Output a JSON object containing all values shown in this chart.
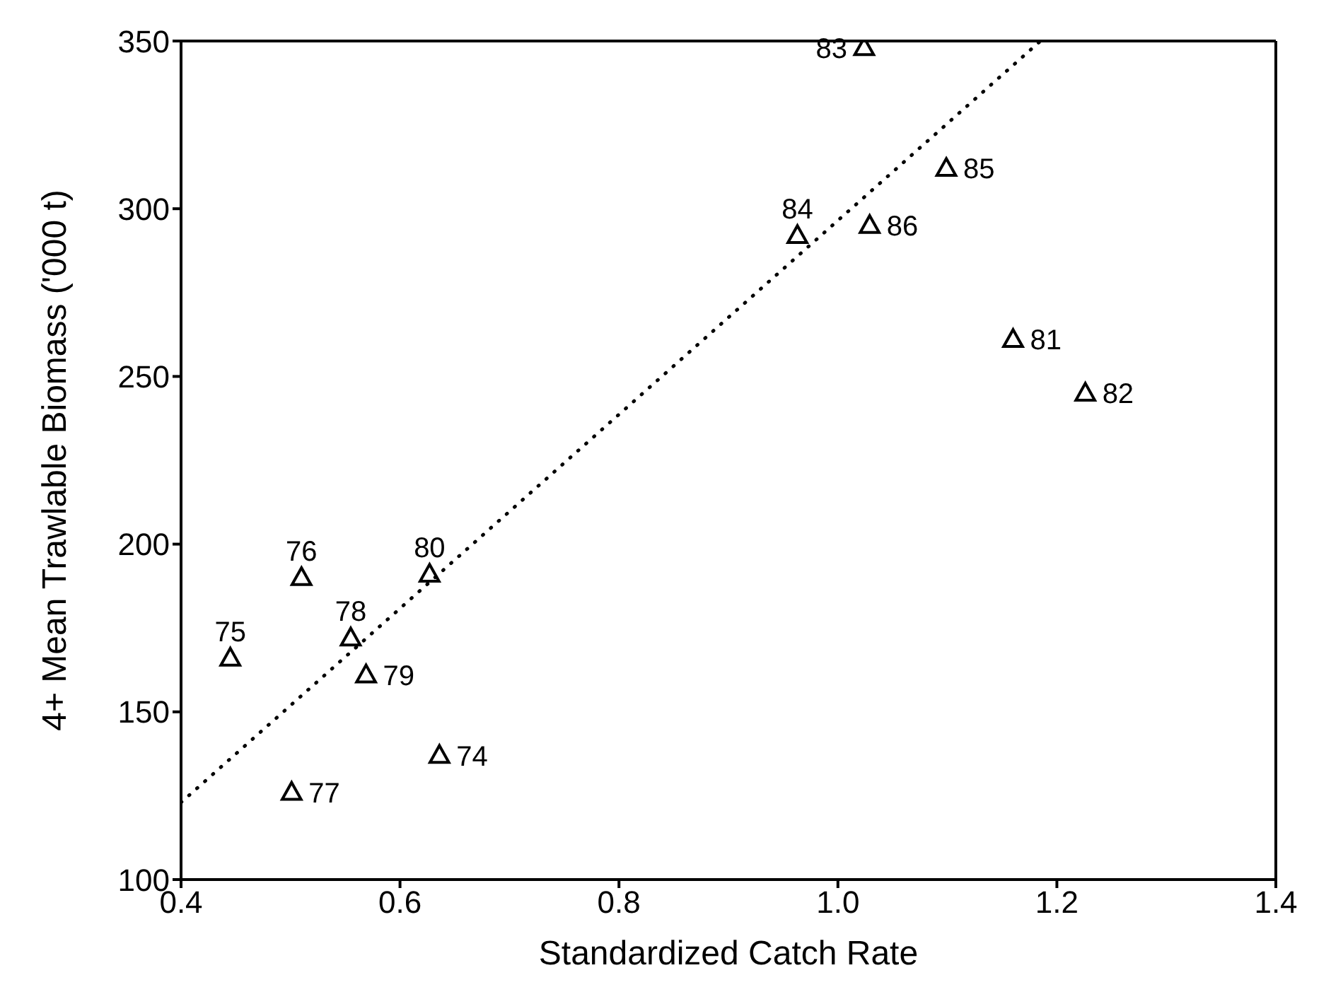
{
  "chart_data": {
    "type": "scatter",
    "xlabel": "Standardized Catch Rate",
    "ylabel": "4+ Mean Trawlable Biomass ('000 t)",
    "xlim": [
      0.4,
      1.4
    ],
    "xticks": [
      0.4,
      0.6,
      0.8,
      {
        "value": 1,
        "label": "1.0"
      },
      1.2,
      1.4
    ],
    "ylim": [
      100,
      350
    ],
    "yticks": [
      100,
      150,
      200,
      250,
      300,
      350
    ],
    "marker": "triangle",
    "series": [
      {
        "color": "#000000",
        "x": [
          0.51,
          0.445,
          0.555,
          0.569,
          0.627,
          0.636,
          0.501,
          1.024,
          0.963,
          1.029,
          1.099,
          1.16,
          1.226
        ],
        "values": [
          190,
          166,
          172,
          161,
          191,
          137,
          126,
          348,
          292,
          295,
          312,
          261,
          245
        ]
      },
      {
        "type": "line",
        "color": "#000000",
        "line_style": "dotted",
        "marker": "none",
        "x": [
          0.4,
          1.185
        ],
        "values": [
          123,
          350
        ]
      }
    ],
    "annotations": [
      {
        "text": "76",
        "x": 0.51,
        "y": 190
      },
      {
        "text": "75",
        "x": 0.445,
        "y": 166
      },
      {
        "text": "78",
        "x": 0.555,
        "y": 172
      },
      {
        "text": "79",
        "x": 0.569,
        "y": 161
      },
      {
        "text": "80",
        "x": 0.627,
        "y": 191
      },
      {
        "text": "74",
        "x": 0.636,
        "y": 137
      },
      {
        "text": "77",
        "x": 0.501,
        "y": 126
      },
      {
        "text": "83",
        "x": 1.024,
        "y": 348
      },
      {
        "text": "84",
        "x": 0.963,
        "y": 292
      },
      {
        "text": "86",
        "x": 1.029,
        "y": 295
      },
      {
        "text": "85",
        "x": 1.099,
        "y": 312
      },
      {
        "text": "81",
        "x": 1.16,
        "y": 261
      },
      {
        "text": "82",
        "x": 1.226,
        "y": 245
      }
    ]
  }
}
